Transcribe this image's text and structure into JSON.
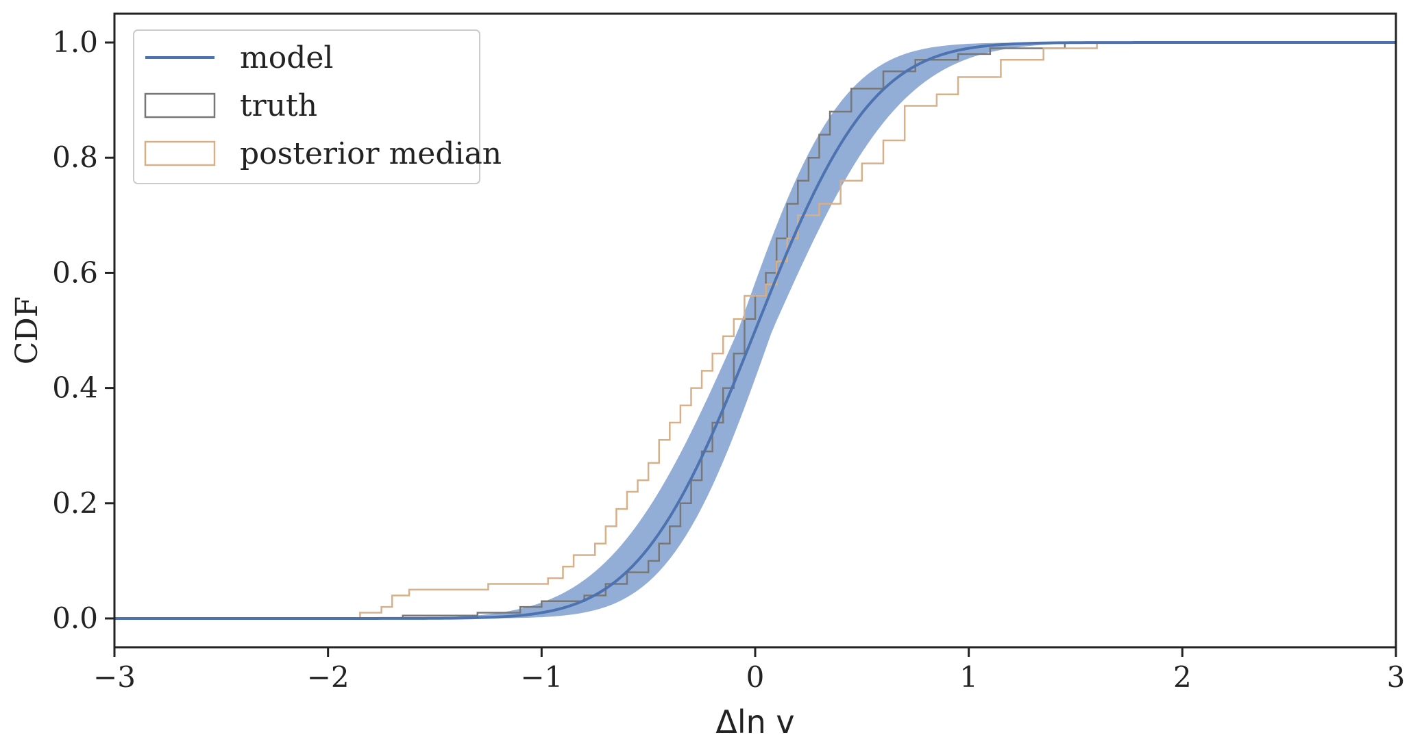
{
  "chart_data": {
    "type": "line",
    "xlabel": "Δln v",
    "ylabel": "CDF",
    "xlim": [
      -3,
      3
    ],
    "ylim": [
      -0.05,
      1.05
    ],
    "xticks": [
      -3,
      -2,
      -1,
      0,
      1,
      2,
      3
    ],
    "xtick_labels": [
      "−3",
      "−2",
      "−1",
      "0",
      "1",
      "2",
      "3"
    ],
    "yticks": [
      0.0,
      0.2,
      0.4,
      0.6,
      0.8,
      1.0
    ],
    "ytick_labels": [
      "0.0",
      "0.2",
      "0.4",
      "0.6",
      "0.8",
      "1.0"
    ],
    "grid": false,
    "legend_position": "top-left",
    "legend": [
      {
        "label": "model",
        "style": "line",
        "color": "#4c72b0"
      },
      {
        "label": "truth",
        "style": "box",
        "color": "#777777"
      },
      {
        "label": "posterior median",
        "style": "box",
        "color": "#d6b088"
      }
    ],
    "series": [
      {
        "name": "model",
        "color": "#4c72b0",
        "kind": "normal-cdf",
        "mean": 0.0,
        "sigma": 0.43,
        "band": {
          "color": "#7f9fcf",
          "mean_range": [
            -0.08,
            0.08
          ],
          "sigma_range": [
            0.38,
            0.48
          ]
        }
      },
      {
        "name": "truth",
        "color": "#777777",
        "kind": "step",
        "points": [
          [
            -1.65,
            0.005
          ],
          [
            -1.3,
            0.01
          ],
          [
            -1.1,
            0.02
          ],
          [
            -1.0,
            0.03
          ],
          [
            -0.8,
            0.04
          ],
          [
            -0.7,
            0.06
          ],
          [
            -0.6,
            0.08
          ],
          [
            -0.5,
            0.1
          ],
          [
            -0.45,
            0.13
          ],
          [
            -0.4,
            0.16
          ],
          [
            -0.35,
            0.2
          ],
          [
            -0.3,
            0.24
          ],
          [
            -0.25,
            0.29
          ],
          [
            -0.2,
            0.34
          ],
          [
            -0.15,
            0.4
          ],
          [
            -0.1,
            0.46
          ],
          [
            -0.05,
            0.52
          ],
          [
            0.0,
            0.56
          ],
          [
            0.05,
            0.6
          ],
          [
            0.1,
            0.66
          ],
          [
            0.15,
            0.72
          ],
          [
            0.2,
            0.76
          ],
          [
            0.25,
            0.8
          ],
          [
            0.3,
            0.84
          ],
          [
            0.35,
            0.88
          ],
          [
            0.45,
            0.92
          ],
          [
            0.6,
            0.95
          ],
          [
            0.75,
            0.97
          ],
          [
            0.95,
            0.98
          ],
          [
            1.1,
            0.99
          ],
          [
            1.45,
            1.0
          ]
        ]
      },
      {
        "name": "posterior median",
        "color": "#d6b088",
        "kind": "step",
        "points": [
          [
            -1.85,
            0.01
          ],
          [
            -1.75,
            0.02
          ],
          [
            -1.7,
            0.04
          ],
          [
            -1.62,
            0.05
          ],
          [
            -1.25,
            0.06
          ],
          [
            -0.97,
            0.07
          ],
          [
            -0.9,
            0.09
          ],
          [
            -0.85,
            0.11
          ],
          [
            -0.75,
            0.13
          ],
          [
            -0.7,
            0.16
          ],
          [
            -0.65,
            0.19
          ],
          [
            -0.6,
            0.22
          ],
          [
            -0.55,
            0.24
          ],
          [
            -0.5,
            0.27
          ],
          [
            -0.45,
            0.31
          ],
          [
            -0.4,
            0.34
          ],
          [
            -0.35,
            0.37
          ],
          [
            -0.3,
            0.4
          ],
          [
            -0.25,
            0.43
          ],
          [
            -0.2,
            0.46
          ],
          [
            -0.15,
            0.49
          ],
          [
            -0.1,
            0.52
          ],
          [
            -0.05,
            0.56
          ],
          [
            0.05,
            0.58
          ],
          [
            0.1,
            0.62
          ],
          [
            0.15,
            0.66
          ],
          [
            0.2,
            0.7
          ],
          [
            0.3,
            0.72
          ],
          [
            0.4,
            0.76
          ],
          [
            0.5,
            0.79
          ],
          [
            0.6,
            0.83
          ],
          [
            0.7,
            0.89
          ],
          [
            0.85,
            0.91
          ],
          [
            0.95,
            0.94
          ],
          [
            1.15,
            0.97
          ],
          [
            1.35,
            0.99
          ],
          [
            1.6,
            1.0
          ]
        ]
      }
    ]
  }
}
